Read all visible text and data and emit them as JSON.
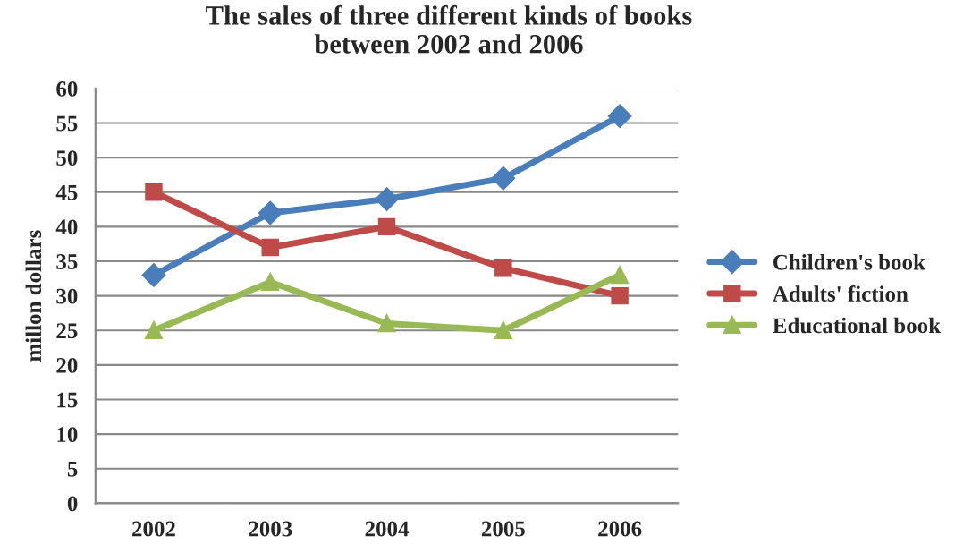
{
  "chart_data": {
    "type": "line",
    "title": "The sales of three different kinds of books\nbetween 2002 and 2006",
    "ylabel": "millon dollars",
    "categories": [
      "2002",
      "2003",
      "2004",
      "2005",
      "2006"
    ],
    "series": [
      {
        "name": "Children's book",
        "color": "#4a7ebb",
        "marker": "diamond",
        "values": [
          33,
          42,
          44,
          47,
          56
        ]
      },
      {
        "name": "Adults' fiction",
        "color": "#be4b48",
        "marker": "square",
        "values": [
          45,
          37,
          40,
          34,
          30
        ]
      },
      {
        "name": "Educational book",
        "color": "#98b954",
        "marker": "triangle",
        "values": [
          25,
          32,
          26,
          25,
          33
        ]
      }
    ],
    "ylim": [
      0,
      60
    ],
    "yticks": [
      0,
      5,
      10,
      15,
      20,
      25,
      30,
      35,
      40,
      45,
      50,
      55,
      60
    ],
    "grid": "y",
    "legend": "right",
    "line_style": "solid"
  }
}
